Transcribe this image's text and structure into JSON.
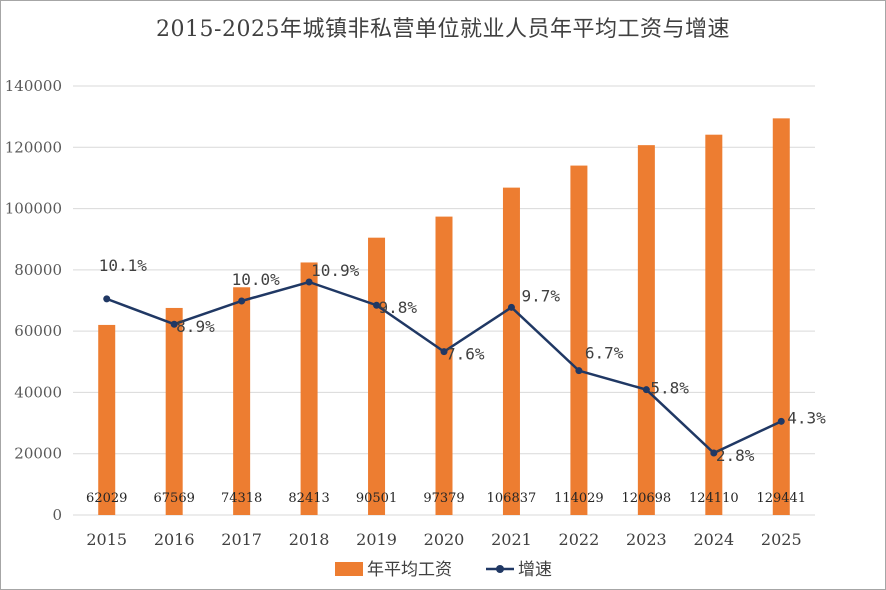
{
  "chart_data": {
    "type": "bar",
    "title": "2015-2025年城镇非私营单位就业人员年平均工资与增速",
    "categories": [
      "2015",
      "2016",
      "2017",
      "2018",
      "2019",
      "2020",
      "2021",
      "2022",
      "2023",
      "2024",
      "2025"
    ],
    "series": [
      {
        "name": "年平均工资",
        "type": "bar",
        "color": "#ed7d31",
        "values": [
          62029,
          67569,
          74318,
          82413,
          90501,
          97379,
          106837,
          114029,
          120698,
          124110,
          129441
        ],
        "labels": [
          "62029",
          "67569",
          "74318",
          "82413",
          "90501",
          "97379",
          "106837",
          "114029",
          "120698",
          "124110",
          "129441"
        ]
      },
      {
        "name": "增速",
        "type": "line",
        "color": "#203864",
        "values": [
          10.1,
          8.9,
          10.0,
          10.9,
          9.8,
          7.6,
          9.7,
          6.7,
          5.8,
          2.8,
          4.3
        ],
        "labels": [
          "10.1%",
          "8.9%",
          "10.0%",
          "10.9%",
          "9.8%",
          "7.6%",
          "9.7%",
          "6.7%",
          "5.8%",
          "2.8%",
          "4.3%"
        ]
      }
    ],
    "y_ticks": [
      "0",
      "20000",
      "40000",
      "60000",
      "80000",
      "100000",
      "120000",
      "140000"
    ],
    "ylim": [
      0,
      140000
    ],
    "grid": true,
    "legend_position": "bottom"
  }
}
